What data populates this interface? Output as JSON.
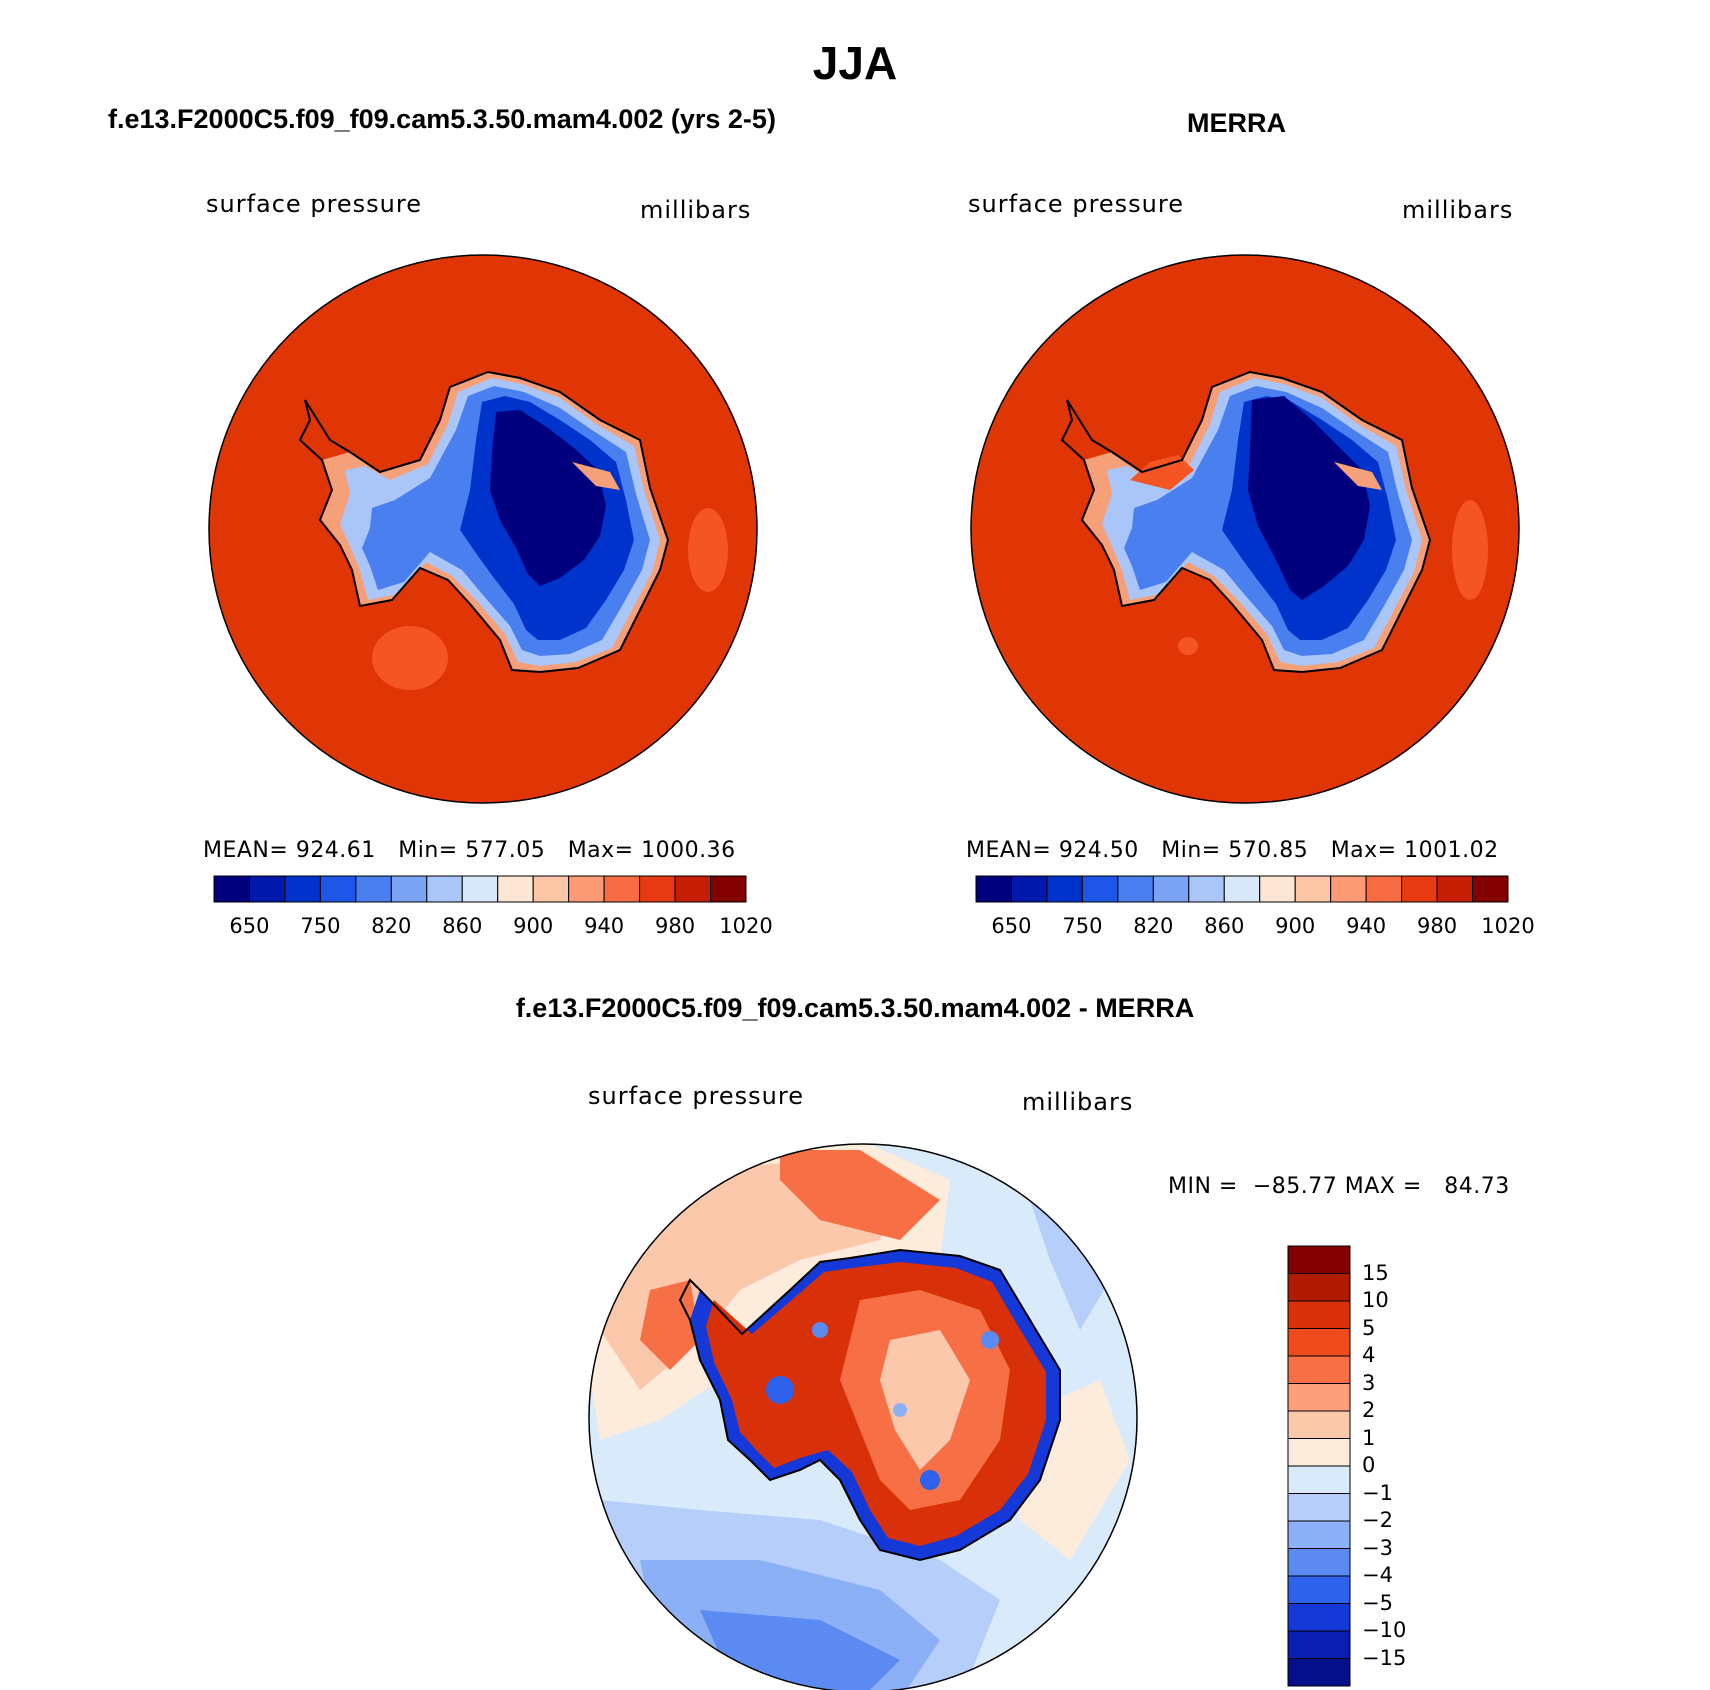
{
  "title": "JJA",
  "panels": [
    {
      "id": "model",
      "heading": "f.e13.F2000C5.f09_f09.cam5.3.50.mam4.002 (yrs 2-5)",
      "variable": "surface pressure",
      "units": "millibars",
      "stats": "MEAN= 924.61   Min= 577.05   Max= 1000.36"
    },
    {
      "id": "merra",
      "heading": "MERRA",
      "variable": "surface pressure",
      "units": "millibars",
      "stats": "MEAN= 924.50   Min= 570.85   Max= 1001.02"
    }
  ],
  "difference": {
    "heading": "f.e13.F2000C5.f09_f09.cam5.3.50.mam4.002 - MERRA",
    "variable": "surface pressure",
    "units": "millibars",
    "stats": "MIN =  −85.77 MAX =   84.73"
  },
  "colorbar_abs": {
    "colors": [
      "#00007f",
      "#0019aa",
      "#0033cc",
      "#1e56e8",
      "#4a7ff0",
      "#7aa3f4",
      "#aac6f8",
      "#d6e8fa",
      "#fde6d3",
      "#fcc5a6",
      "#fb9a74",
      "#f76a42",
      "#e83a12",
      "#c61e05",
      "#820000"
    ],
    "labels": [
      "650",
      "750",
      "820",
      "860",
      "900",
      "940",
      "980",
      "1020"
    ]
  },
  "colorbar_diff": {
    "colors": [
      "#820000",
      "#b01a00",
      "#d83008",
      "#ee4a1c",
      "#f77045",
      "#fb9f7c",
      "#fcc8ac",
      "#fdebdc",
      "#d9eafb",
      "#b6cffa",
      "#8bb0f6",
      "#5c8af3",
      "#2f62ec",
      "#1538d8",
      "#0a1eb4",
      "#03108a"
    ],
    "labels": [
      "15",
      "10",
      "5",
      "4",
      "3",
      "2",
      "1",
      "0",
      "−1",
      "−2",
      "−3",
      "−4",
      "−5",
      "−10",
      "−15"
    ]
  }
}
